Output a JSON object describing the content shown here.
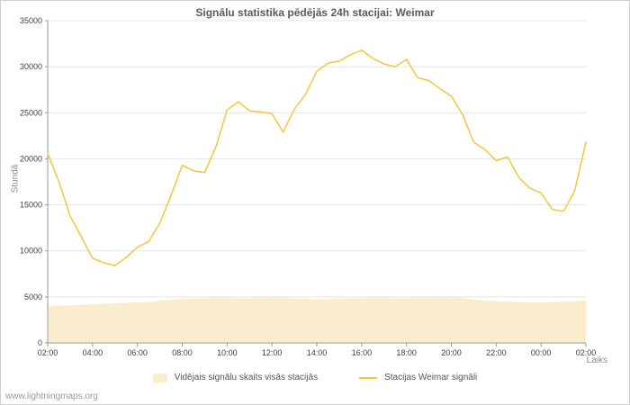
{
  "footer": {
    "watermark": "www.lightningmaps.org"
  },
  "chart_data": {
    "type": "line",
    "title": "Signālu statistika pēdējās 24h stacijai: Weimar",
    "xlabel": "Laiks",
    "ylabel": "Stundā",
    "grid": "horizontal",
    "legend_position": "bottom",
    "xlim": [
      2,
      26
    ],
    "ylim": [
      0,
      35000
    ],
    "yticks": [
      0,
      5000,
      10000,
      15000,
      20000,
      25000,
      30000,
      35000
    ],
    "xtick_step_hours": 2,
    "xticklabels": [
      "02:00",
      "04:00",
      "06:00",
      "08:00",
      "10:00",
      "12:00",
      "14:00",
      "16:00",
      "18:00",
      "20:00",
      "22:00",
      "00:00",
      "02:00"
    ],
    "x_hours": [
      2,
      2.5,
      3,
      3.5,
      4,
      4.5,
      5,
      5.5,
      6,
      6.5,
      7,
      7.5,
      8,
      8.5,
      9,
      9.5,
      10,
      10.5,
      11,
      11.5,
      12,
      12.5,
      13,
      13.5,
      14,
      14.5,
      15,
      15.5,
      16,
      16.5,
      17,
      17.5,
      18,
      18.5,
      19,
      19.5,
      20,
      20.5,
      21,
      21.5,
      22,
      22.5,
      23,
      23.5,
      24,
      24.5,
      25,
      25.5,
      26
    ],
    "series": [
      {
        "name": "Vidējais signālu skaits visās stacijās",
        "type": "area",
        "color": "#faedcd",
        "values": [
          4000,
          4050,
          4100,
          4150,
          4200,
          4250,
          4300,
          4350,
          4400,
          4450,
          4600,
          4700,
          4800,
          4850,
          4850,
          4900,
          4900,
          4850,
          4850,
          4900,
          4950,
          4900,
          4850,
          4800,
          4750,
          4750,
          4800,
          4850,
          4850,
          4900,
          4900,
          4850,
          4850,
          4900,
          4900,
          4950,
          5000,
          4900,
          4700,
          4600,
          4550,
          4500,
          4450,
          4400,
          4400,
          4450,
          4500,
          4550,
          4650
        ]
      },
      {
        "name": "Stacijas Weimar signāli",
        "type": "line",
        "color": "#f5c63c",
        "values": [
          20600,
          17500,
          13800,
          11500,
          9200,
          8700,
          8400,
          9300,
          10400,
          11000,
          13000,
          16000,
          19300,
          18700,
          18500,
          21300,
          25300,
          26200,
          25200,
          25100,
          24900,
          22900,
          25400,
          27000,
          29500,
          30400,
          30600,
          31300,
          31800,
          30900,
          30300,
          30000,
          30800,
          28800,
          28500,
          27600,
          26800,
          24800,
          21800,
          21000,
          19800,
          20200,
          18000,
          16800,
          16300,
          14500,
          14300,
          16500,
          21800
        ]
      }
    ],
    "axis_color": "#999999",
    "grid_color": "#e4e4e4"
  }
}
